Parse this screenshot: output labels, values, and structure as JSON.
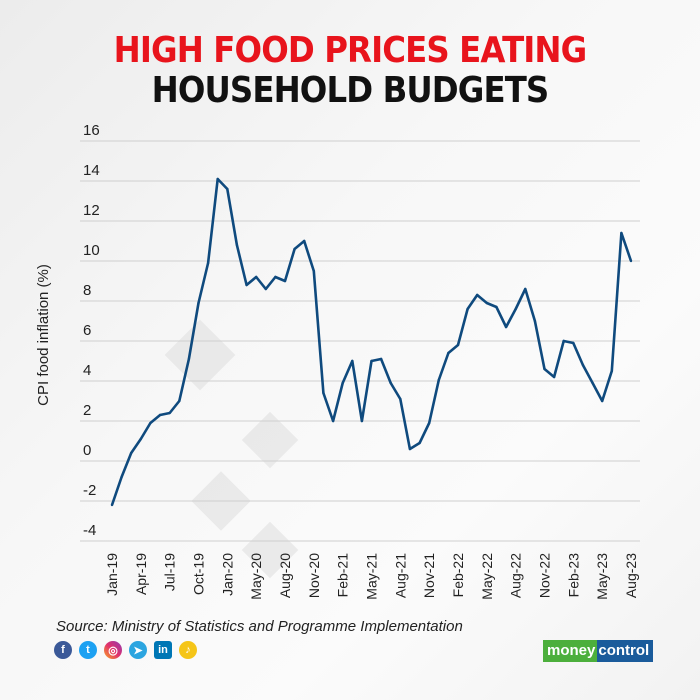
{
  "title_line1": "HIGH FOOD PRICES EATING",
  "title_line2": "HOUSEHOLD BUDGETS",
  "source": "Source: Ministry of Statistics and Programme Implementation",
  "social_icons": [
    "facebook-icon",
    "twitter-icon",
    "instagram-icon",
    "telegram-icon",
    "linkedin-icon",
    "snapchat-icon"
  ],
  "logo": {
    "part1": "money",
    "part2": "control"
  },
  "colors": {
    "line": "#0f4a7e",
    "title_red": "#e8141c",
    "grid": "#cfcfcf"
  },
  "chart_data": {
    "type": "line",
    "ylabel": "CPI food inflation (%)",
    "xlabel": "",
    "ylim": [
      -4,
      16
    ],
    "yticks": [
      16,
      14,
      12,
      10,
      8,
      6,
      4,
      2,
      0,
      -2,
      -4
    ],
    "grid": true,
    "values": [
      -2.2,
      -0.8,
      0.4,
      1.1,
      1.9,
      2.3,
      2.4,
      3.0,
      5.1,
      7.9,
      9.9,
      14.1,
      13.6,
      10.8,
      8.8,
      9.2,
      8.6,
      9.2,
      9.0,
      10.6,
      11.0,
      9.5,
      3.4,
      2.0,
      3.9,
      5.0,
      2.0,
      5.0,
      5.1,
      3.9,
      3.1,
      0.6,
      0.9,
      1.9,
      4.05,
      5.4,
      5.8,
      7.6,
      8.3,
      7.9,
      7.7,
      6.7,
      7.6,
      8.6,
      7.0,
      4.6,
      4.2,
      6.0,
      5.9,
      4.8,
      3.9,
      3.0,
      4.5,
      11.4,
      10.0
    ],
    "xticks": [
      {
        "label": "Jan-19",
        "index": 0
      },
      {
        "label": "Apr-19",
        "index": 3
      },
      {
        "label": "Jul-19",
        "index": 6
      },
      {
        "label": "Oct-19",
        "index": 9
      },
      {
        "label": "Jan-20",
        "index": 12
      },
      {
        "label": "May-20",
        "index": 15
      },
      {
        "label": "Aug-20",
        "index": 18
      },
      {
        "label": "Nov-20",
        "index": 21
      },
      {
        "label": "Feb-21",
        "index": 24
      },
      {
        "label": "May-21",
        "index": 27
      },
      {
        "label": "Aug-21",
        "index": 30
      },
      {
        "label": "Nov-21",
        "index": 33
      },
      {
        "label": "Feb-22",
        "index": 36
      },
      {
        "label": "May-22",
        "index": 39
      },
      {
        "label": "Aug-22",
        "index": 42
      },
      {
        "label": "Nov-22",
        "index": 45
      },
      {
        "label": "Feb-23",
        "index": 48
      },
      {
        "label": "May-23",
        "index": 51
      },
      {
        "label": "Aug-23",
        "index": 54
      }
    ]
  }
}
